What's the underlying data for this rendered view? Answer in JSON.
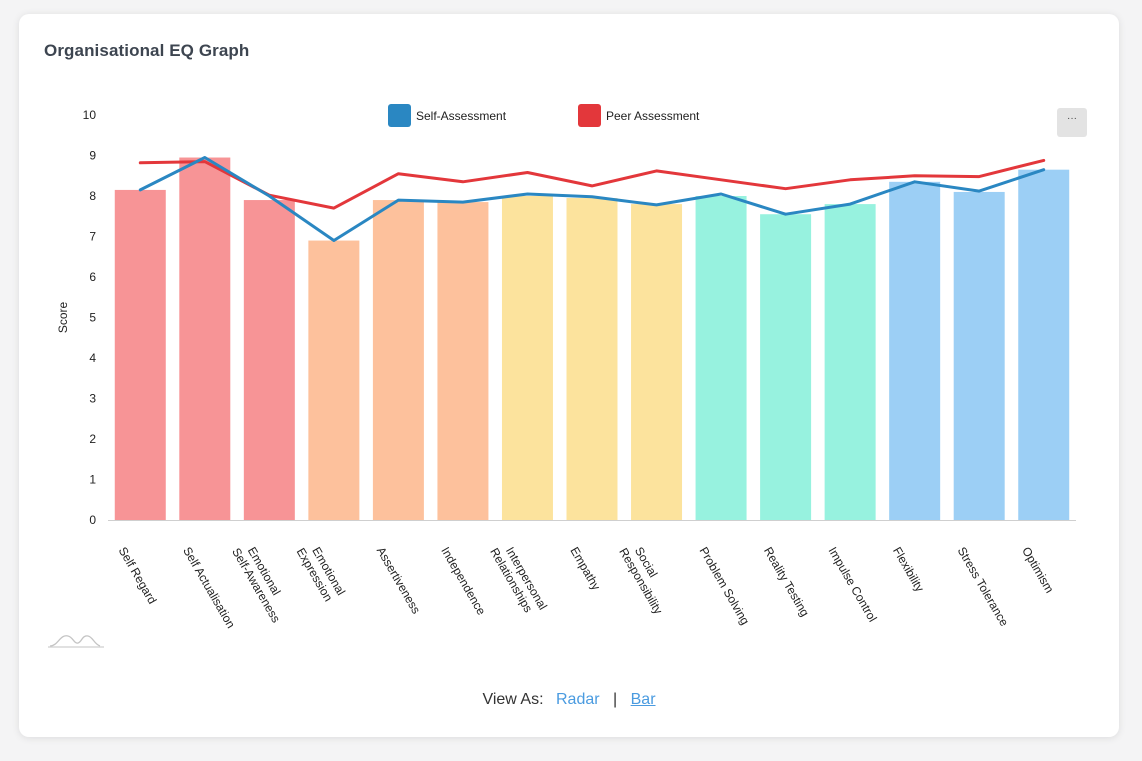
{
  "card": {
    "title": "Organisational EQ Graph"
  },
  "menu_button": {
    "label": "···"
  },
  "view_as": {
    "label": "View As:",
    "options": [
      "Radar",
      "Bar"
    ],
    "separator": "|",
    "active": "Bar"
  },
  "chart_data": {
    "type": "bar",
    "title": "",
    "xlabel": "",
    "ylabel": "Score",
    "ylim": [
      0,
      10
    ],
    "yticks": [
      0,
      1,
      2,
      3,
      4,
      5,
      6,
      7,
      8,
      9,
      10
    ],
    "grid": false,
    "legend_position": "top-center",
    "categories": [
      "Self Regard",
      "Self Actualisation",
      "Emotional Self-Awareness",
      "Emotional Expression",
      "Assertiveness",
      "Independence",
      "Interpersonal Relationships",
      "Empathy",
      "Social Responsibility",
      "Problem Solving",
      "Reality Testing",
      "Impulse Control",
      "Flexibility",
      "Stress Tolerance",
      "Optimism"
    ],
    "category_label_lines": [
      [
        "Self Regard"
      ],
      [
        "Self Actualisation"
      ],
      [
        "Emotional",
        "Self-Awareness"
      ],
      [
        "Emotional",
        "Expression"
      ],
      [
        "Assertiveness"
      ],
      [
        "Independence"
      ],
      [
        "Interpersonal",
        "Relationships"
      ],
      [
        "Empathy"
      ],
      [
        "Social",
        "Responsibility"
      ],
      [
        "Problem Solving"
      ],
      [
        "Reality Testing"
      ],
      [
        "Impulse Control"
      ],
      [
        "Flexibility"
      ],
      [
        "Stress Tolerance"
      ],
      [
        "Optimism"
      ]
    ],
    "bar_values": [
      8.15,
      8.95,
      7.9,
      6.9,
      7.9,
      7.85,
      8.0,
      7.95,
      7.8,
      8.0,
      7.55,
      7.8,
      8.35,
      8.1,
      8.65
    ],
    "bar_colors": [
      "#f79496",
      "#f79496",
      "#f79496",
      "#fdc19c",
      "#fdc19c",
      "#fdc19c",
      "#fce39d",
      "#fce39d",
      "#fce39d",
      "#97f2df",
      "#97f2df",
      "#97f2df",
      "#9ccff5",
      "#9ccff5",
      "#9ccff5"
    ],
    "series": [
      {
        "name": "Self-Assessment",
        "color": "#2a87c2",
        "values": [
          8.15,
          8.95,
          8.0,
          6.9,
          7.9,
          7.85,
          8.05,
          7.98,
          7.78,
          8.05,
          7.55,
          7.8,
          8.35,
          8.12,
          8.65
        ]
      },
      {
        "name": "Peer Assessment",
        "color": "#e3373b",
        "values": [
          8.82,
          8.85,
          8.02,
          7.7,
          8.55,
          8.35,
          8.58,
          8.25,
          8.62,
          8.4,
          8.18,
          8.4,
          8.5,
          8.48,
          8.88
        ]
      }
    ]
  }
}
